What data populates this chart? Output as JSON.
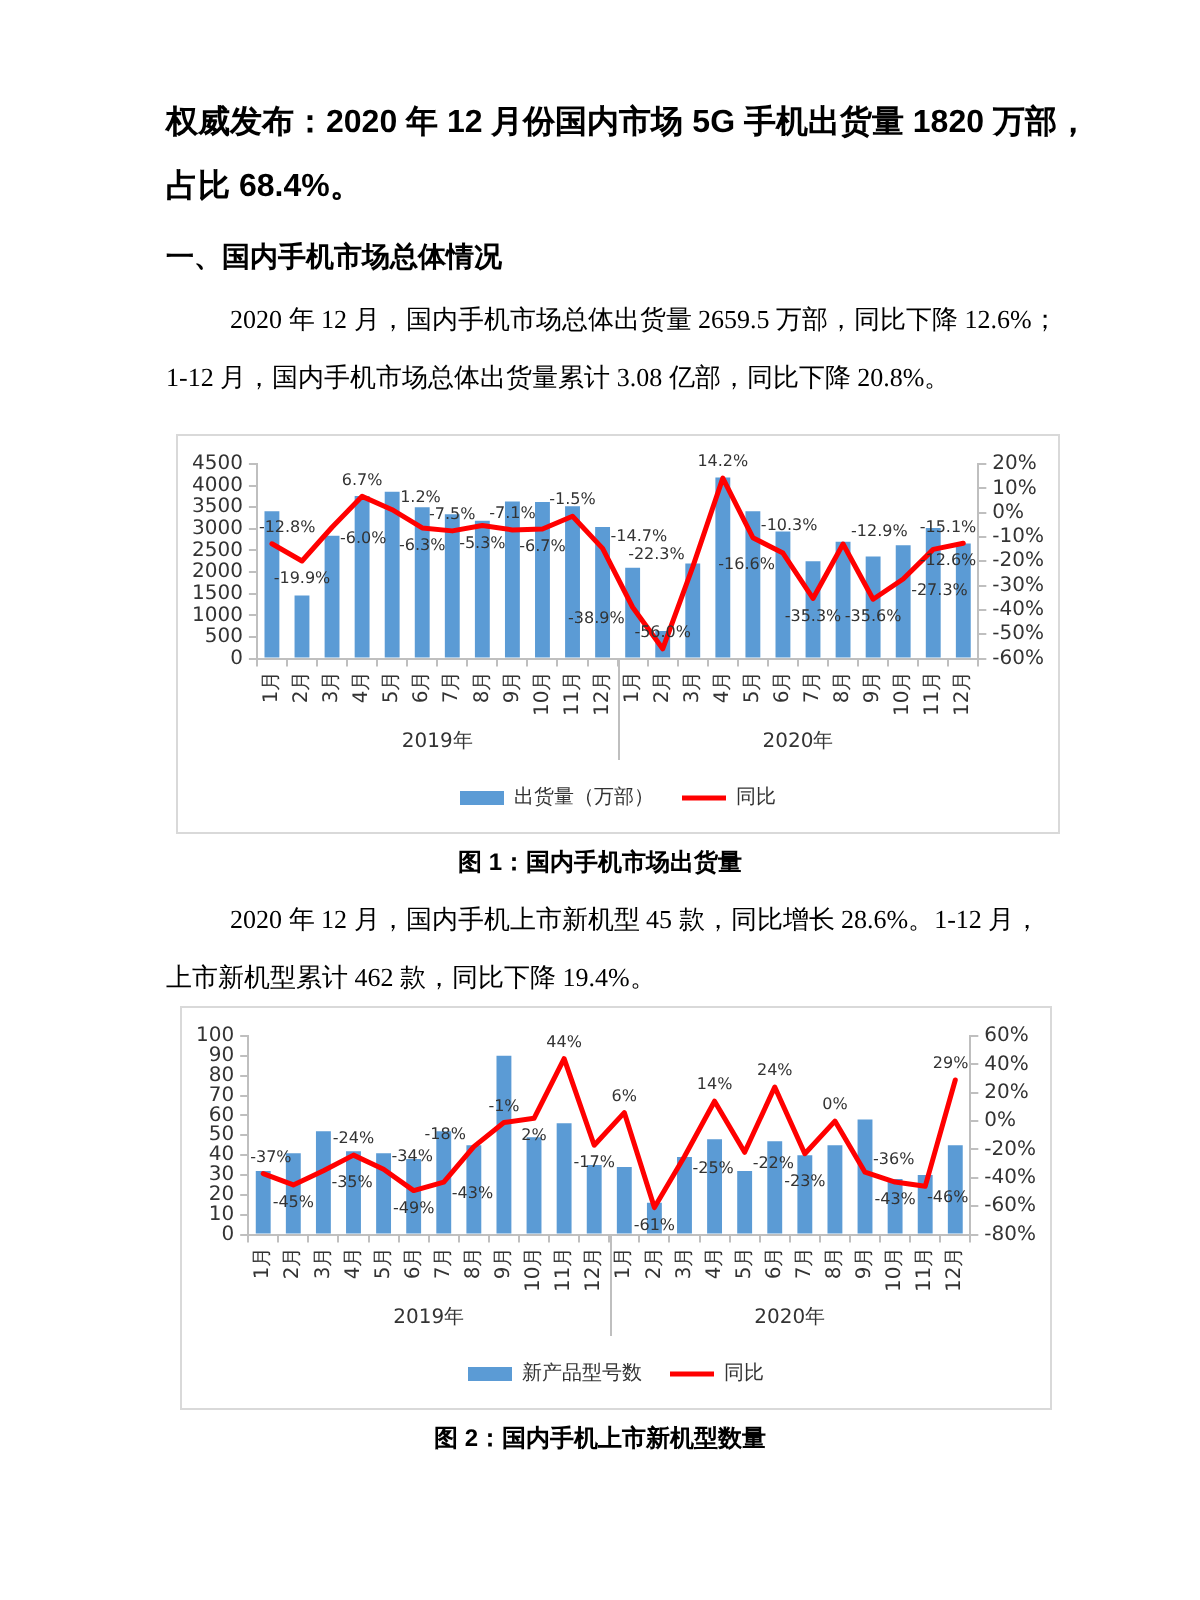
{
  "chart_data": [
    {
      "type": "bar",
      "title": "权威发布：2020 年 12 月份国内市场 5G 手机出货量 1820 万部，占比 68.4%。",
      "subtitle": "一、国内手机市场总体情况",
      "annotations": [
        "2020 年 12 月，国内手机市场总体出货量 2659.5 万部，同比下降 12.6%；1-12 月，国内手机市场总体出货量累计 3.08 亿部，同比下降 20.8%。",
        "图 1：国内手机市场出货量",
        "2019年",
        "2020年"
      ],
      "categories": [
        "1月",
        "2月",
        "3月",
        "4月",
        "5月",
        "6月",
        "7月",
        "8月",
        "9月",
        "10月",
        "11月",
        "12月",
        "1月",
        "2月",
        "3月",
        "4月",
        "5月",
        "6月",
        "7月",
        "8月",
        "9月",
        "10月",
        "11月",
        "12月"
      ],
      "series": [
        {
          "name": "出货量（万部）",
          "color": "#5b9bd5",
          "values": [
            3410,
            1460,
            2840,
            3760,
            3860,
            3500,
            3340,
            3190,
            3630,
            3620,
            3520,
            3040,
            2100,
            640,
            2200,
            4190,
            3410,
            2940,
            2250,
            2700,
            2360,
            2620,
            3020,
            2660
          ]
        },
        {
          "name": "同比",
          "type": "line",
          "axis": "y2",
          "color": "#ff0000",
          "values": [
            -12.8,
            -19.9,
            -6.0,
            6.7,
            1.2,
            -6.3,
            -7.5,
            -5.3,
            -7.1,
            -6.7,
            -1.5,
            -14.7,
            -38.9,
            -56.0,
            -22.3,
            14.2,
            -10.3,
            -16.6,
            -35.3,
            -12.9,
            -35.6,
            -27.3,
            -15.1,
            -12.6
          ],
          "value_labels": [
            "-12.8%",
            "-19.9%",
            "-6.0%",
            "6.7%",
            "1.2%",
            "-6.3%",
            "-7.5%",
            "-5.3%",
            "-7.1%",
            "-6.7%",
            "-1.5%",
            "-14.7%",
            "-38.9%",
            "-56.0%",
            "-22.3%",
            "14.2%",
            "-10.3%",
            "-16.6%",
            "-35.3%",
            "-12.9%",
            "-35.6%",
            "-27.3%",
            "-15.1%",
            "-12.6%"
          ]
        }
      ],
      "ylim": [
        0,
        4500
      ],
      "yticks": [
        0,
        500,
        1000,
        1500,
        2000,
        2500,
        3000,
        3500,
        4000,
        4500
      ],
      "y2lim": [
        -60,
        20
      ],
      "y2ticks": [
        {
          "value": -60,
          "label": "-60%"
        },
        {
          "value": -50,
          "label": "-50%"
        },
        {
          "value": -40,
          "label": "-40%"
        },
        {
          "value": -30,
          "label": "-30%"
        },
        {
          "value": -20,
          "label": "-20%"
        },
        {
          "value": -10,
          "label": "-10%"
        },
        {
          "value": 0,
          "label": "0%"
        },
        {
          "value": 10,
          "label": "10%"
        },
        {
          "value": 20,
          "label": "20%"
        }
      ],
      "grid": false,
      "legend": "bottom",
      "marker": "none"
    },
    {
      "type": "bar",
      "annotations": [
        "2020 年 12 月，国内手机上市新机型 45 款，同比增长 28.6%。1-12 月，上市新机型累计 462 款，同比下降 19.4%。",
        "图 2：国内手机上市新机型数量",
        "2019年",
        "2020年"
      ],
      "categories": [
        "1月",
        "2月",
        "3月",
        "4月",
        "5月",
        "6月",
        "7月",
        "8月",
        "9月",
        "10月",
        "11月",
        "12月",
        "1月",
        "2月",
        "3月",
        "4月",
        "5月",
        "6月",
        "7月",
        "8月",
        "9月",
        "10月",
        "11月",
        "12月"
      ],
      "series": [
        {
          "name": "新产品型号数",
          "color": "#5b9bd5",
          "values": [
            32,
            41,
            52,
            42,
            41,
            38,
            52,
            45,
            90,
            49,
            56,
            35,
            34,
            16,
            39,
            48,
            32,
            47,
            40,
            45,
            58,
            28,
            30,
            45
          ]
        },
        {
          "name": "同比",
          "type": "line",
          "axis": "y2",
          "color": "#ff0000",
          "values": [
            -37,
            -45,
            -35,
            -24,
            -34,
            -49,
            -43,
            -18,
            -1,
            2,
            44,
            -17,
            6,
            -61,
            -25,
            14,
            -22,
            24,
            -23,
            0,
            -36,
            -43,
            -46,
            29
          ],
          "value_labels": [
            "-37%",
            "-45%",
            "-35%",
            "-24%",
            "-34%",
            "-49%",
            "-43%",
            "-18%",
            "-1%",
            "2%",
            "44%",
            "-17%",
            "6%",
            "-61%",
            "-25%",
            "14%",
            "-22%",
            "24%",
            "-23%",
            "0%",
            "-36%",
            "-43%",
            "-46%",
            "29%"
          ]
        }
      ],
      "ylim": [
        0,
        100
      ],
      "yticks": [
        0,
        10,
        20,
        30,
        40,
        50,
        60,
        70,
        80,
        90,
        100
      ],
      "y2lim": [
        -80,
        60
      ],
      "y2ticks": [
        {
          "value": -80,
          "label": "-80%"
        },
        {
          "value": -60,
          "label": "-60%"
        },
        {
          "value": -40,
          "label": "-40%"
        },
        {
          "value": -20,
          "label": "-20%"
        },
        {
          "value": 0,
          "label": "0%"
        },
        {
          "value": 20,
          "label": "20%"
        },
        {
          "value": 40,
          "label": "40%"
        },
        {
          "value": 60,
          "label": "60%"
        }
      ],
      "grid": false,
      "legend": "bottom",
      "marker": "none"
    }
  ]
}
